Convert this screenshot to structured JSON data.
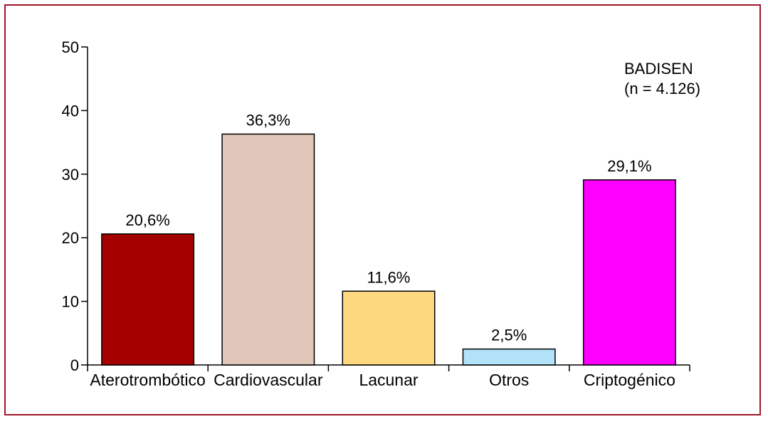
{
  "chart_data": {
    "type": "bar",
    "categories": [
      "Aterotrombótico",
      "Cardiovascular",
      "Lacunar",
      "Otros",
      "Criptogénico"
    ],
    "values": [
      20.6,
      36.3,
      11.6,
      2.5,
      29.1
    ],
    "data_labels": [
      "20,6%",
      "36,3%",
      "11,6%",
      "2,5%",
      "29,1%"
    ],
    "colors": [
      "#a50000",
      "#dfc6b8",
      "#fed87f",
      "#b3e2fb",
      "#ff00ff"
    ],
    "ylim": [
      0,
      50
    ],
    "yticks": [
      0,
      10,
      20,
      30,
      40,
      50
    ],
    "ytick_labels": [
      "0",
      "10",
      "20",
      "30",
      "40",
      "50"
    ],
    "grid": false,
    "annotation": {
      "line1": "BADISEN",
      "line2": "(n = 4.126)"
    }
  }
}
